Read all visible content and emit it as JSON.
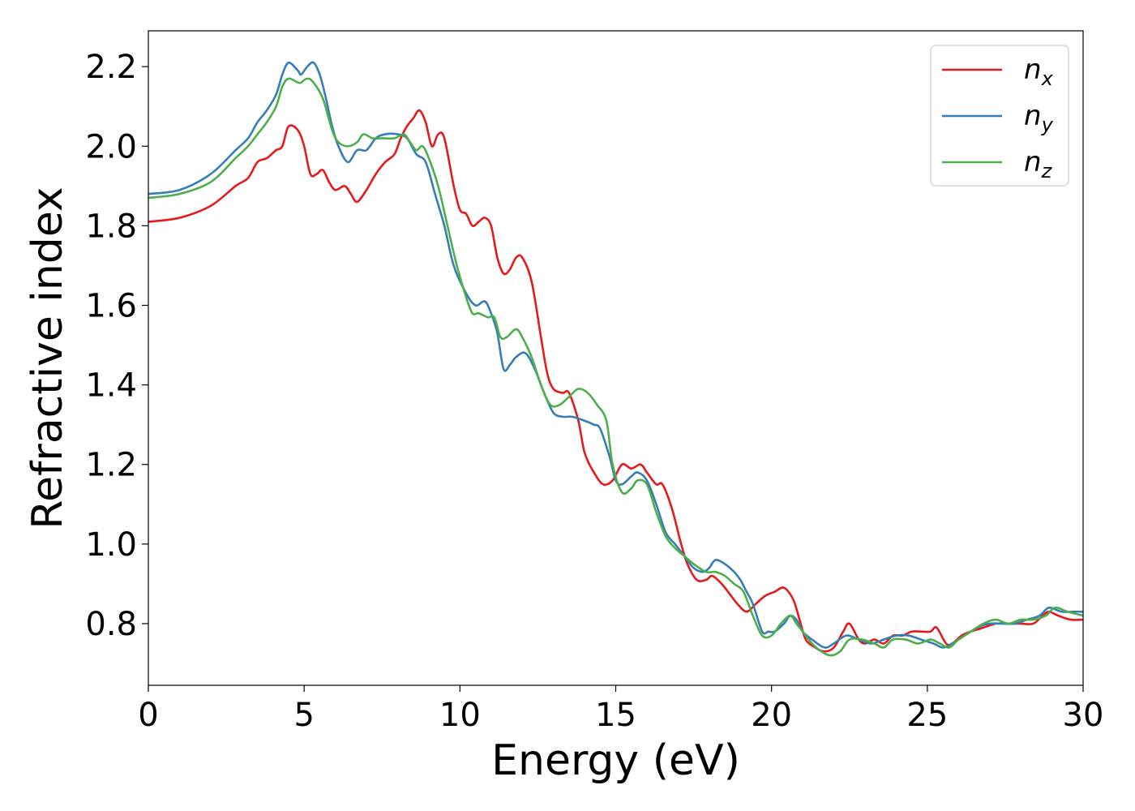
{
  "chart_data": {
    "type": "line",
    "xlabel": "Energy (eV)",
    "ylabel": "Refractive index",
    "xlim": [
      0,
      30
    ],
    "ylim": [
      0.645,
      2.29
    ],
    "xticks": [
      0,
      5,
      10,
      15,
      20,
      25,
      30
    ],
    "xtick_labels": [
      "0",
      "5",
      "10",
      "15",
      "20",
      "25",
      "30"
    ],
    "yticks": [
      0.8,
      1.0,
      1.2,
      1.4,
      1.6,
      1.8,
      2.0,
      2.2
    ],
    "ytick_labels": [
      "0.8",
      "1.0",
      "1.2",
      "1.4",
      "1.6",
      "1.8",
      "2.0",
      "2.2"
    ],
    "grid": false,
    "legend_position": "top-right",
    "series": [
      {
        "name": "n_x",
        "legend_base": "n",
        "legend_sub": "x",
        "color": "#e41a1c",
        "points": [
          [
            0,
            1.81
          ],
          [
            1,
            1.82
          ],
          [
            2,
            1.85
          ],
          [
            2.8,
            1.9
          ],
          [
            3.2,
            1.92
          ],
          [
            3.5,
            1.96
          ],
          [
            3.8,
            1.97
          ],
          [
            4.1,
            1.99
          ],
          [
            4.3,
            2.0
          ],
          [
            4.5,
            2.05
          ],
          [
            4.8,
            2.04
          ],
          [
            5,
            2.0
          ],
          [
            5.2,
            1.93
          ],
          [
            5.4,
            1.93
          ],
          [
            5.6,
            1.94
          ],
          [
            5.8,
            1.91
          ],
          [
            6,
            1.89
          ],
          [
            6.3,
            1.9
          ],
          [
            6.5,
            1.88
          ],
          [
            6.7,
            1.86
          ],
          [
            7,
            1.89
          ],
          [
            7.3,
            1.93
          ],
          [
            7.6,
            1.96
          ],
          [
            7.9,
            1.98
          ],
          [
            8.1,
            2.02
          ],
          [
            8.3,
            2.05
          ],
          [
            8.5,
            2.07
          ],
          [
            8.7,
            2.09
          ],
          [
            8.9,
            2.06
          ],
          [
            9.1,
            2.0
          ],
          [
            9.3,
            2.03
          ],
          [
            9.5,
            2.02
          ],
          [
            9.8,
            1.9
          ],
          [
            10,
            1.84
          ],
          [
            10.2,
            1.83
          ],
          [
            10.4,
            1.8
          ],
          [
            10.6,
            1.81
          ],
          [
            10.8,
            1.82
          ],
          [
            11,
            1.8
          ],
          [
            11.2,
            1.72
          ],
          [
            11.4,
            1.68
          ],
          [
            11.6,
            1.69
          ],
          [
            11.8,
            1.72
          ],
          [
            12,
            1.72
          ],
          [
            12.3,
            1.66
          ],
          [
            12.6,
            1.52
          ],
          [
            12.8,
            1.43
          ],
          [
            13,
            1.39
          ],
          [
            13.3,
            1.38
          ],
          [
            13.5,
            1.38
          ],
          [
            13.8,
            1.31
          ],
          [
            14,
            1.23
          ],
          [
            14.3,
            1.18
          ],
          [
            14.6,
            1.15
          ],
          [
            14.9,
            1.16
          ],
          [
            15.2,
            1.2
          ],
          [
            15.5,
            1.19
          ],
          [
            15.8,
            1.2
          ],
          [
            16,
            1.18
          ],
          [
            16.3,
            1.15
          ],
          [
            16.5,
            1.15
          ],
          [
            16.8,
            1.09
          ],
          [
            17.1,
            1.0
          ],
          [
            17.3,
            0.95
          ],
          [
            17.6,
            0.91
          ],
          [
            17.9,
            0.91
          ],
          [
            18.1,
            0.92
          ],
          [
            18.4,
            0.9
          ],
          [
            18.7,
            0.87
          ],
          [
            18.9,
            0.85
          ],
          [
            19.2,
            0.83
          ],
          [
            19.5,
            0.85
          ],
          [
            19.8,
            0.87
          ],
          [
            20.1,
            0.88
          ],
          [
            20.4,
            0.89
          ],
          [
            20.7,
            0.86
          ],
          [
            20.9,
            0.81
          ],
          [
            21.1,
            0.76
          ],
          [
            21.4,
            0.74
          ],
          [
            21.7,
            0.73
          ],
          [
            22,
            0.74
          ],
          [
            22.3,
            0.78
          ],
          [
            22.5,
            0.8
          ],
          [
            22.8,
            0.76
          ],
          [
            23,
            0.75
          ],
          [
            23.3,
            0.76
          ],
          [
            23.6,
            0.75
          ],
          [
            23.9,
            0.77
          ],
          [
            24.2,
            0.77
          ],
          [
            24.5,
            0.78
          ],
          [
            24.8,
            0.78
          ],
          [
            25.1,
            0.78
          ],
          [
            25.3,
            0.79
          ],
          [
            25.6,
            0.75
          ],
          [
            25.8,
            0.75
          ],
          [
            26.1,
            0.77
          ],
          [
            26.4,
            0.78
          ],
          [
            26.8,
            0.79
          ],
          [
            27.2,
            0.8
          ],
          [
            27.6,
            0.8
          ],
          [
            28,
            0.8
          ],
          [
            28.4,
            0.8
          ],
          [
            28.7,
            0.82
          ],
          [
            28.9,
            0.83
          ],
          [
            29.2,
            0.82
          ],
          [
            29.6,
            0.81
          ],
          [
            30,
            0.81
          ]
        ]
      },
      {
        "name": "n_y",
        "legend_base": "n",
        "legend_sub": "y",
        "color": "#377eb8",
        "points": [
          [
            0,
            1.88
          ],
          [
            1,
            1.89
          ],
          [
            2,
            1.93
          ],
          [
            2.8,
            1.99
          ],
          [
            3.2,
            2.02
          ],
          [
            3.5,
            2.06
          ],
          [
            3.8,
            2.09
          ],
          [
            4.1,
            2.13
          ],
          [
            4.3,
            2.18
          ],
          [
            4.5,
            2.21
          ],
          [
            4.8,
            2.19
          ],
          [
            4.9,
            2.18
          ],
          [
            5.1,
            2.2
          ],
          [
            5.3,
            2.21
          ],
          [
            5.5,
            2.18
          ],
          [
            5.7,
            2.12
          ],
          [
            5.9,
            2.05
          ],
          [
            6.1,
            2.0
          ],
          [
            6.4,
            1.96
          ],
          [
            6.7,
            1.99
          ],
          [
            7,
            1.99
          ],
          [
            7.3,
            2.02
          ],
          [
            7.6,
            2.03
          ],
          [
            8,
            2.03
          ],
          [
            8.3,
            2.02
          ],
          [
            8.6,
            1.98
          ],
          [
            8.9,
            1.96
          ],
          [
            9.2,
            1.88
          ],
          [
            9.5,
            1.8
          ],
          [
            9.8,
            1.7
          ],
          [
            10.2,
            1.63
          ],
          [
            10.5,
            1.6
          ],
          [
            10.8,
            1.61
          ],
          [
            11,
            1.58
          ],
          [
            11.2,
            1.53
          ],
          [
            11.4,
            1.44
          ],
          [
            11.6,
            1.45
          ],
          [
            11.8,
            1.47
          ],
          [
            12.1,
            1.48
          ],
          [
            12.4,
            1.44
          ],
          [
            12.7,
            1.38
          ],
          [
            13,
            1.33
          ],
          [
            13.3,
            1.32
          ],
          [
            13.6,
            1.32
          ],
          [
            14,
            1.31
          ],
          [
            14.3,
            1.3
          ],
          [
            14.5,
            1.29
          ],
          [
            14.8,
            1.22
          ],
          [
            15,
            1.16
          ],
          [
            15.2,
            1.15
          ],
          [
            15.5,
            1.17
          ],
          [
            15.7,
            1.18
          ],
          [
            16,
            1.16
          ],
          [
            16.3,
            1.1
          ],
          [
            16.6,
            1.03
          ],
          [
            16.9,
            1.0
          ],
          [
            17.2,
            0.97
          ],
          [
            17.5,
            0.94
          ],
          [
            17.8,
            0.93
          ],
          [
            18,
            0.94
          ],
          [
            18.2,
            0.96
          ],
          [
            18.5,
            0.95
          ],
          [
            18.8,
            0.93
          ],
          [
            19,
            0.91
          ],
          [
            19.2,
            0.88
          ],
          [
            19.4,
            0.85
          ],
          [
            19.7,
            0.78
          ],
          [
            19.9,
            0.78
          ],
          [
            20.1,
            0.78
          ],
          [
            20.4,
            0.8
          ],
          [
            20.6,
            0.82
          ],
          [
            20.8,
            0.81
          ],
          [
            21,
            0.78
          ],
          [
            21.3,
            0.76
          ],
          [
            21.7,
            0.74
          ],
          [
            22,
            0.75
          ],
          [
            22.4,
            0.77
          ],
          [
            22.8,
            0.76
          ],
          [
            23.2,
            0.75
          ],
          [
            23.6,
            0.76
          ],
          [
            24,
            0.77
          ],
          [
            24.4,
            0.77
          ],
          [
            24.8,
            0.76
          ],
          [
            25.2,
            0.75
          ],
          [
            25.5,
            0.74
          ],
          [
            25.8,
            0.75
          ],
          [
            26.2,
            0.77
          ],
          [
            26.6,
            0.79
          ],
          [
            27,
            0.8
          ],
          [
            27.4,
            0.8
          ],
          [
            27.8,
            0.8
          ],
          [
            28.2,
            0.81
          ],
          [
            28.6,
            0.82
          ],
          [
            28.9,
            0.84
          ],
          [
            29.3,
            0.83
          ],
          [
            29.7,
            0.83
          ],
          [
            30,
            0.83
          ]
        ]
      },
      {
        "name": "n_z",
        "legend_base": "n",
        "legend_sub": "z",
        "color": "#4daf4a",
        "points": [
          [
            0,
            1.87
          ],
          [
            1,
            1.88
          ],
          [
            2,
            1.91
          ],
          [
            2.8,
            1.97
          ],
          [
            3.2,
            2.0
          ],
          [
            3.5,
            2.03
          ],
          [
            3.8,
            2.06
          ],
          [
            4.1,
            2.1
          ],
          [
            4.3,
            2.15
          ],
          [
            4.5,
            2.17
          ],
          [
            4.8,
            2.16
          ],
          [
            4.9,
            2.16
          ],
          [
            5.1,
            2.17
          ],
          [
            5.3,
            2.16
          ],
          [
            5.6,
            2.12
          ],
          [
            5.9,
            2.04
          ],
          [
            6.1,
            2.01
          ],
          [
            6.4,
            2.0
          ],
          [
            6.7,
            2.01
          ],
          [
            6.9,
            2.03
          ],
          [
            7.2,
            2.02
          ],
          [
            7.5,
            2.02
          ],
          [
            7.9,
            2.02
          ],
          [
            8.2,
            2.03
          ],
          [
            8.4,
            2.01
          ],
          [
            8.6,
            1.99
          ],
          [
            8.8,
            2.0
          ],
          [
            9,
            1.97
          ],
          [
            9.3,
            1.9
          ],
          [
            9.6,
            1.8
          ],
          [
            9.9,
            1.7
          ],
          [
            10.2,
            1.62
          ],
          [
            10.4,
            1.58
          ],
          [
            10.6,
            1.58
          ],
          [
            10.9,
            1.57
          ],
          [
            11.1,
            1.57
          ],
          [
            11.3,
            1.52
          ],
          [
            11.5,
            1.52
          ],
          [
            11.8,
            1.54
          ],
          [
            12,
            1.52
          ],
          [
            12.3,
            1.47
          ],
          [
            12.6,
            1.4
          ],
          [
            12.9,
            1.35
          ],
          [
            13.2,
            1.35
          ],
          [
            13.5,
            1.37
          ],
          [
            13.8,
            1.39
          ],
          [
            14.1,
            1.38
          ],
          [
            14.4,
            1.35
          ],
          [
            14.7,
            1.31
          ],
          [
            14.9,
            1.2
          ],
          [
            15.2,
            1.13
          ],
          [
            15.5,
            1.14
          ],
          [
            15.7,
            1.16
          ],
          [
            16,
            1.15
          ],
          [
            16.3,
            1.08
          ],
          [
            16.6,
            1.02
          ],
          [
            16.9,
            0.99
          ],
          [
            17.2,
            0.97
          ],
          [
            17.5,
            0.95
          ],
          [
            17.9,
            0.93
          ],
          [
            18.2,
            0.93
          ],
          [
            18.5,
            0.92
          ],
          [
            18.8,
            0.9
          ],
          [
            19.1,
            0.88
          ],
          [
            19.4,
            0.82
          ],
          [
            19.7,
            0.77
          ],
          [
            20,
            0.77
          ],
          [
            20.3,
            0.8
          ],
          [
            20.6,
            0.82
          ],
          [
            20.8,
            0.8
          ],
          [
            21,
            0.78
          ],
          [
            21.3,
            0.75
          ],
          [
            21.6,
            0.73
          ],
          [
            21.9,
            0.72
          ],
          [
            22.2,
            0.73
          ],
          [
            22.5,
            0.76
          ],
          [
            22.9,
            0.76
          ],
          [
            23.3,
            0.75
          ],
          [
            23.6,
            0.74
          ],
          [
            23.9,
            0.76
          ],
          [
            24.3,
            0.76
          ],
          [
            24.7,
            0.75
          ],
          [
            25.1,
            0.76
          ],
          [
            25.4,
            0.75
          ],
          [
            25.7,
            0.74
          ],
          [
            26,
            0.76
          ],
          [
            26.4,
            0.78
          ],
          [
            26.8,
            0.8
          ],
          [
            27.2,
            0.81
          ],
          [
            27.6,
            0.8
          ],
          [
            28,
            0.81
          ],
          [
            28.4,
            0.81
          ],
          [
            28.8,
            0.82
          ],
          [
            29.1,
            0.84
          ],
          [
            29.5,
            0.83
          ],
          [
            30,
            0.82
          ]
        ]
      }
    ]
  }
}
